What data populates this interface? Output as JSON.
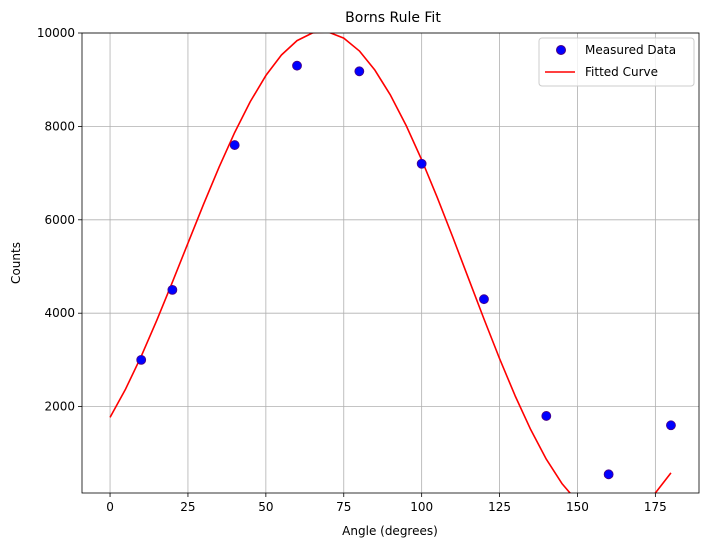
{
  "chart_data": {
    "type": "scatter",
    "title": "Borns Rule Fit",
    "xlabel": "Angle (degrees)",
    "ylabel": "Counts",
    "xlim": [
      -9,
      189
    ],
    "ylim": [
      150,
      10000
    ],
    "xticks": [
      0,
      25,
      50,
      75,
      100,
      125,
      150,
      175
    ],
    "yticks": [
      2000,
      4000,
      6000,
      8000,
      10000
    ],
    "xtick_labels": [
      "0",
      "25",
      "50",
      "75",
      "100",
      "125",
      "150",
      "175"
    ],
    "ytick_labels": [
      "2000",
      "4000",
      "6000",
      "8000",
      "10000"
    ],
    "grid": true,
    "legend": {
      "location": "upper right",
      "entries": [
        "Measured Data",
        "Fitted Curve"
      ]
    },
    "series": [
      {
        "name": "Measured Data",
        "kind": "scatter",
        "color": "#0000ff",
        "edge_color": "#4b0082",
        "x": [
          10,
          20,
          40,
          60,
          80,
          100,
          120,
          140,
          160,
          180
        ],
        "y": [
          3000,
          4500,
          7600,
          9300,
          9180,
          7200,
          4300,
          1800,
          550,
          1600
        ]
      },
      {
        "name": "Fitted Curve",
        "kind": "line",
        "color": "#ff0000",
        "model": "A*cos^2(theta - theta0) + C",
        "x": [
          0,
          5,
          10,
          15,
          20,
          25,
          30,
          35,
          40,
          45,
          50,
          55,
          60,
          65,
          70,
          75,
          80,
          85,
          90,
          95,
          100,
          105,
          110,
          115,
          120,
          125,
          130,
          135,
          140,
          145,
          150,
          155,
          160,
          165,
          170,
          175,
          180
        ],
        "y": [
          1770,
          2378,
          3077,
          3847,
          4663,
          5500,
          6331,
          7129,
          7870,
          8530,
          9089,
          9529,
          9837,
          10003,
          10021,
          9891,
          9616,
          9204,
          8668,
          8023,
          7286,
          6480,
          5626,
          4750,
          3876,
          3027,
          2230,
          1506,
          874,
          354,
          -37,
          -292,
          -402,
          -363,
          -177,
          150,
          581
        ],
        "color_note": ""
      }
    ]
  }
}
